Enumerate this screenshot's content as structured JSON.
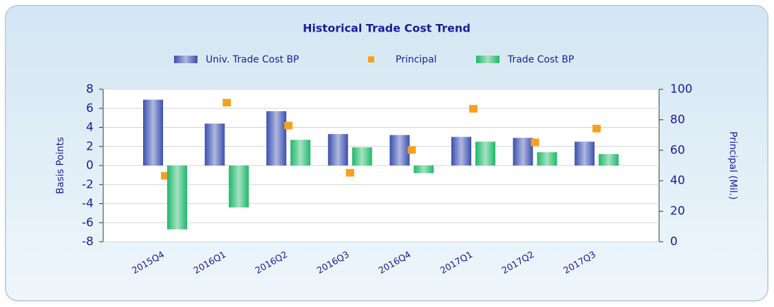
{
  "chart_data": {
    "type": "bar",
    "title": "Historical Trade Cost Trend",
    "categories": [
      "2015Q4",
      "2016Q1",
      "2016Q2",
      "2016Q3",
      "2016Q4",
      "2017Q1",
      "2017Q2",
      "2017Q3"
    ],
    "series": [
      {
        "name": "Univ. Trade Cost BP",
        "type": "bar",
        "color": "#3a4fb0",
        "values": [
          6.9,
          4.4,
          5.7,
          3.3,
          3.2,
          3.0,
          2.9,
          2.5
        ]
      },
      {
        "name": "Principal",
        "type": "scatter",
        "axis": "y2",
        "color": "#f5a11c",
        "values": [
          43,
          91,
          76,
          45,
          60,
          87,
          65,
          74
        ]
      },
      {
        "name": "Trade Cost BP",
        "type": "bar",
        "color": "#1fb86a",
        "values": [
          -6.7,
          -4.4,
          2.7,
          1.9,
          -0.8,
          2.5,
          1.4,
          1.2
        ]
      }
    ],
    "y_label": "Basis Points",
    "y2_label": "Principal (Mil.)",
    "ylim": [
      -8,
      8
    ],
    "yticks": [
      -8,
      -6,
      -4,
      -2,
      0,
      2,
      4,
      6,
      8
    ],
    "y2lim": [
      0,
      100
    ],
    "y2ticks": [
      0,
      20,
      40,
      60,
      80,
      100
    ],
    "grid": true,
    "legend": "top"
  }
}
